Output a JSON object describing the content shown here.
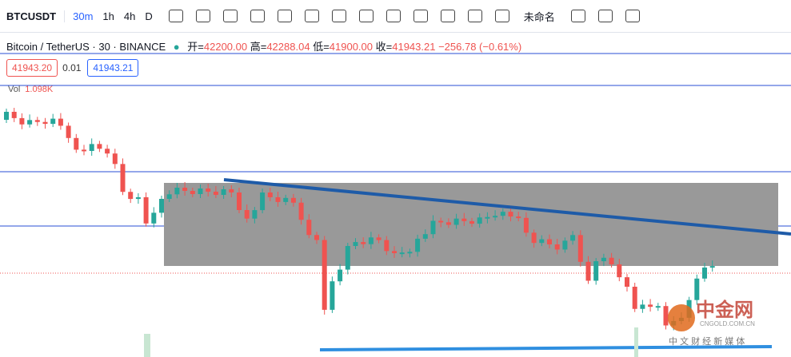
{
  "toolbar": {
    "symbol": "BTCUSDT",
    "intervals": [
      "30m",
      "1h",
      "4h",
      "D"
    ],
    "layout_name": "未命名"
  },
  "legend": {
    "title": "Bitcoin / TetherUS · 30 · BINANCE",
    "open_label": "开=",
    "open": "42200.00",
    "high_label": "高=",
    "high": "42288.04",
    "low_label": "低=",
    "low": "41900.00",
    "close_label": "收=",
    "close": "41943.21",
    "change": "−256.78 (−0.61%)"
  },
  "order_panel": {
    "sell": "41943.20",
    "spread": "0.01",
    "buy": "41943.21"
  },
  "volume": {
    "label": "Vol",
    "value": "1.098K"
  },
  "watermark": {
    "brand": "中金网",
    "site": "CNGOLD.COM.CN",
    "slogan": "中 文 财 经 新 媒 体"
  }
}
